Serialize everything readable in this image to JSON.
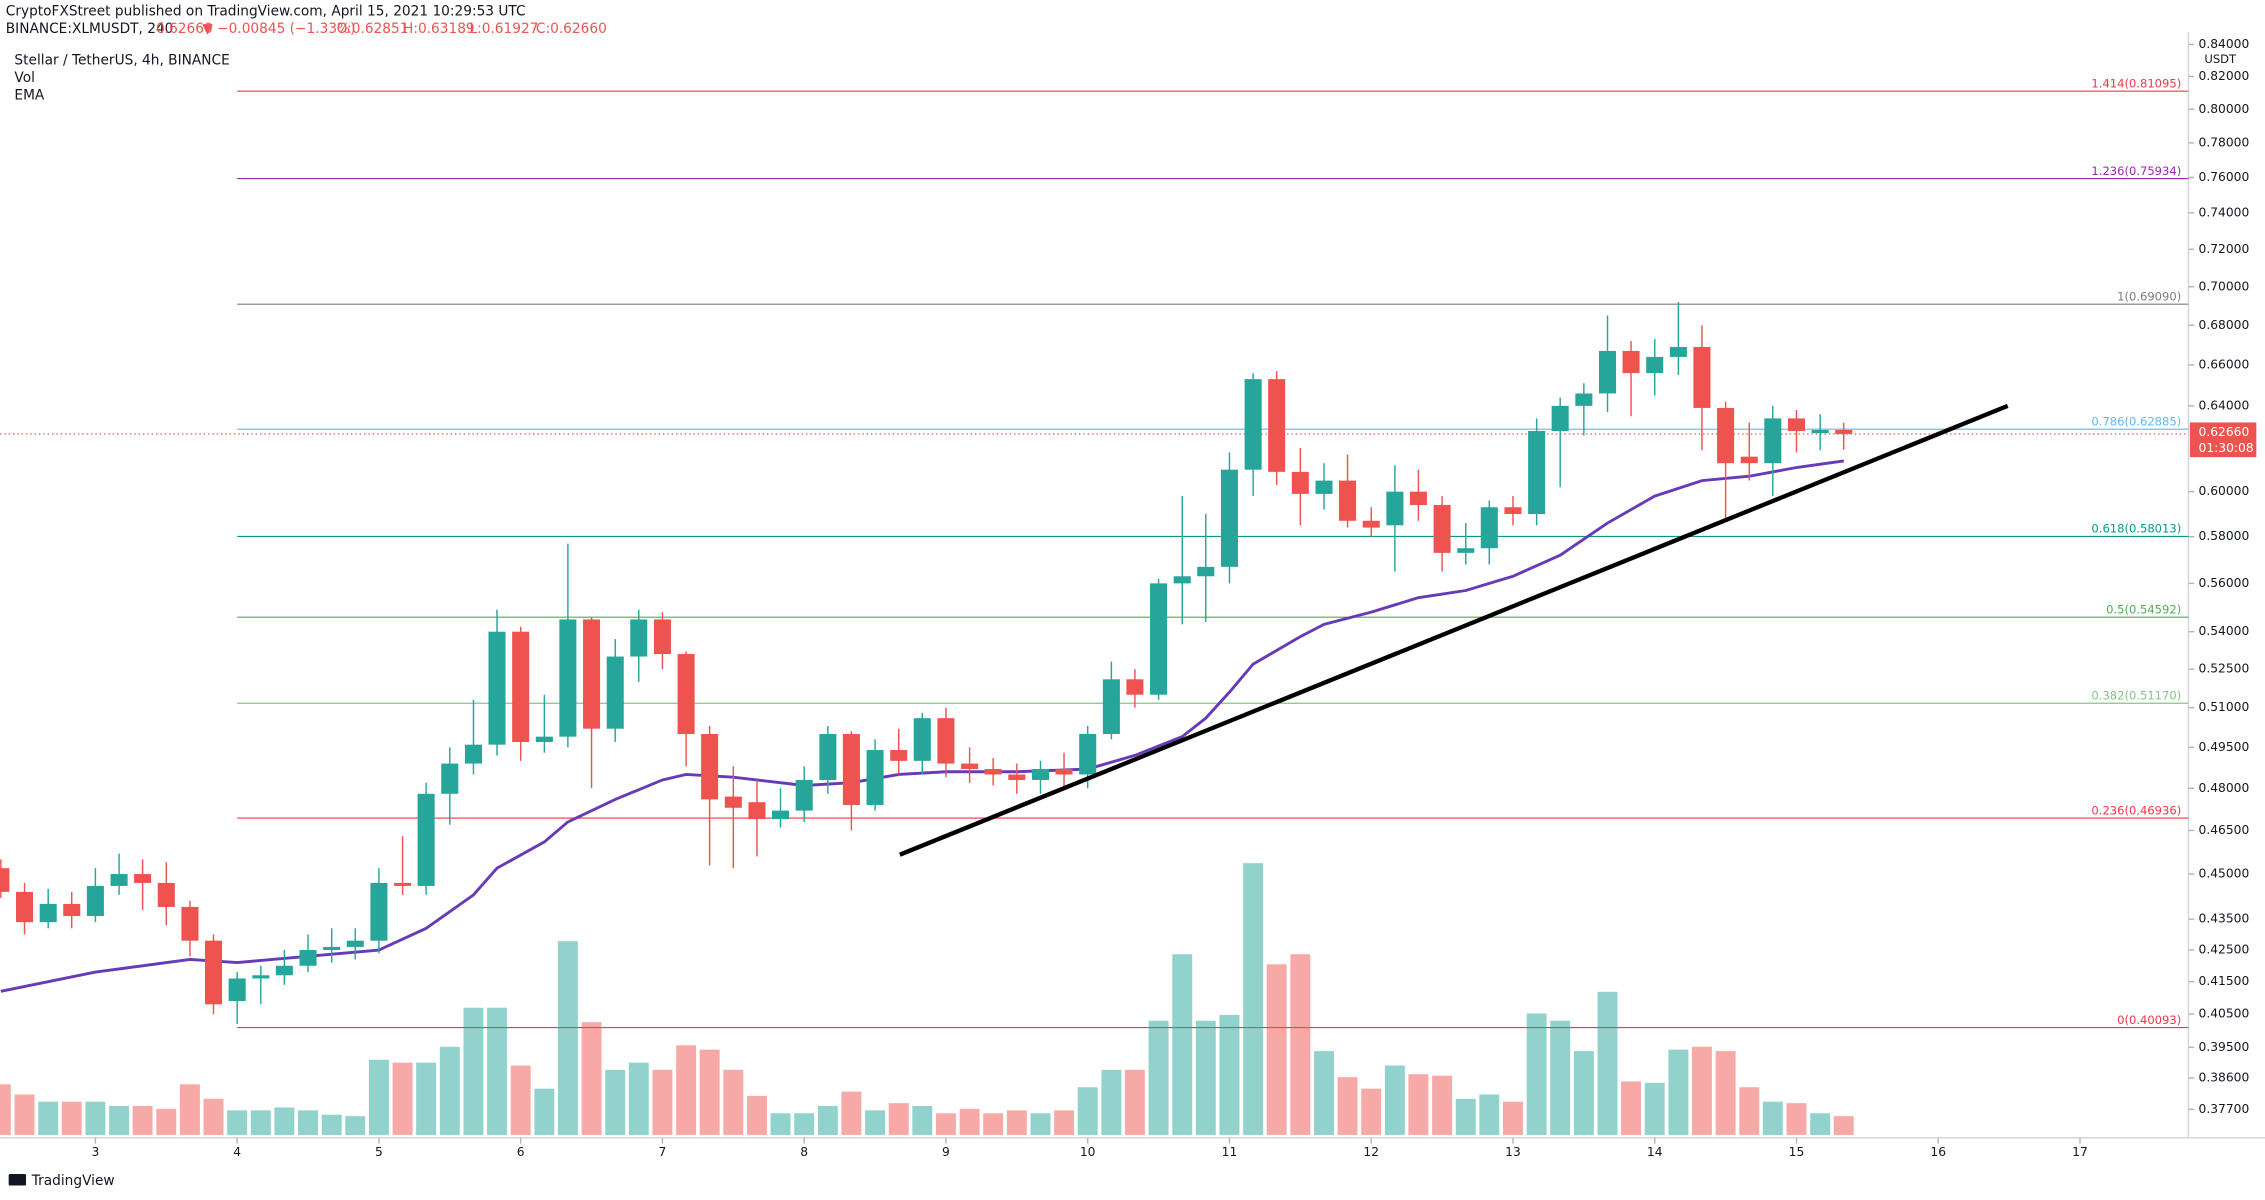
{
  "header": {
    "publisher": "CryptoFXStreet published on TradingView.com, April 15, 2021 10:29:53 UTC",
    "symbol": "BINANCE:XLMUSDT, 240",
    "last": "0.62660",
    "change": "▼ −0.00845 (−1.33%)",
    "ohlc": [
      "O:0.62851",
      "H:0.63189",
      "L:0.61927",
      "C:0.62660"
    ]
  },
  "footer": {
    "brand": "TradingView"
  },
  "chart_data": {
    "type": "candlestick",
    "title": "Stellar / TetherUS, 4h, BINANCE",
    "currency": "USDT",
    "log_scale": true,
    "grid": false,
    "up_color": "#26a69a",
    "down_color": "#ef5350",
    "xlim": [
      2.327,
      17.765
    ],
    "xticks": [
      3,
      4,
      5,
      6,
      7,
      8,
      9,
      10,
      11,
      12,
      13,
      14,
      15,
      16,
      17
    ],
    "ylim": [
      0.369,
      0.848
    ],
    "yticks": [
      {
        "value": 0.84,
        "label": "0.84000"
      },
      {
        "value": 0.82,
        "label": "0.82000"
      },
      {
        "value": 0.8,
        "label": "0.80000"
      },
      {
        "value": 0.78,
        "label": "0.78000"
      },
      {
        "value": 0.76,
        "label": "0.76000"
      },
      {
        "value": 0.74,
        "label": "0.74000"
      },
      {
        "value": 0.72,
        "label": "0.72000"
      },
      {
        "value": 0.7,
        "label": "0.70000"
      },
      {
        "value": 0.68,
        "label": "0.68000"
      },
      {
        "value": 0.66,
        "label": "0.66000"
      },
      {
        "value": 0.64,
        "label": "0.64000"
      },
      {
        "value": 0.6,
        "label": "0.60000"
      },
      {
        "value": 0.58,
        "label": "0.58000"
      },
      {
        "value": 0.56,
        "label": "0.56000"
      },
      {
        "value": 0.54,
        "label": "0.54000"
      },
      {
        "value": 0.525,
        "label": "0.52500"
      },
      {
        "value": 0.51,
        "label": "0.51000"
      },
      {
        "value": 0.495,
        "label": "0.49500"
      },
      {
        "value": 0.48,
        "label": "0.48000"
      },
      {
        "value": 0.465,
        "label": "0.46500"
      },
      {
        "value": 0.45,
        "label": "0.45000"
      },
      {
        "value": 0.435,
        "label": "0.43500"
      },
      {
        "value": 0.425,
        "label": "0.42500"
      },
      {
        "value": 0.415,
        "label": "0.41500"
      },
      {
        "value": 0.405,
        "label": "0.40500"
      },
      {
        "value": 0.395,
        "label": "0.39500"
      },
      {
        "value": 0.386,
        "label": "0.38600"
      },
      {
        "value": 0.377,
        "label": "0.37700"
      }
    ],
    "x": [
      2.333,
      2.5,
      2.667,
      2.833,
      3,
      3.167,
      3.333,
      3.5,
      3.667,
      3.833,
      4,
      4.167,
      4.333,
      4.5,
      4.667,
      4.833,
      5,
      5.167,
      5.333,
      5.5,
      5.667,
      5.833,
      6,
      6.167,
      6.333,
      6.5,
      6.667,
      6.833,
      7,
      7.167,
      7.333,
      7.5,
      7.667,
      7.833,
      8,
      8.167,
      8.333,
      8.5,
      8.667,
      8.833,
      9,
      9.167,
      9.333,
      9.5,
      9.667,
      9.833,
      10,
      10.167,
      10.333,
      10.5,
      10.667,
      10.833,
      11,
      11.167,
      11.333,
      11.5,
      11.667,
      11.833,
      12,
      12.167,
      12.333,
      12.5,
      12.667,
      12.833,
      13,
      13.167,
      13.333,
      13.5,
      13.667,
      13.833,
      14,
      14.167,
      14.333,
      14.5,
      14.667,
      14.833,
      15,
      15.167,
      15.333
    ],
    "open": [
      0.452,
      0.444,
      0.434,
      0.44,
      0.436,
      0.446,
      0.45,
      0.447,
      0.439,
      0.428,
      0.409,
      0.416,
      0.417,
      0.42,
      0.425,
      0.426,
      0.428,
      0.447,
      0.446,
      0.478,
      0.489,
      0.496,
      0.54,
      0.497,
      0.499,
      0.545,
      0.502,
      0.53,
      0.545,
      0.531,
      0.5,
      0.477,
      0.475,
      0.469,
      0.472,
      0.483,
      0.5,
      0.474,
      0.494,
      0.49,
      0.506,
      0.489,
      0.487,
      0.485,
      0.483,
      0.487,
      0.485,
      0.5,
      0.521,
      0.515,
      0.56,
      0.563,
      0.567,
      0.61,
      0.653,
      0.609,
      0.599,
      0.605,
      0.587,
      0.585,
      0.6,
      0.594,
      0.573,
      0.575,
      0.593,
      0.59,
      0.628,
      0.64,
      0.646,
      0.667,
      0.656,
      0.664,
      0.669,
      0.639,
      0.616,
      0.613,
      0.634,
      0.627,
      0.62851
    ],
    "high": [
      0.455,
      0.447,
      0.445,
      0.444,
      0.452,
      0.457,
      0.455,
      0.454,
      0.441,
      0.43,
      0.418,
      0.42,
      0.425,
      0.43,
      0.432,
      0.432,
      0.452,
      0.463,
      0.482,
      0.495,
      0.513,
      0.549,
      0.542,
      0.515,
      0.577,
      0.546,
      0.537,
      0.549,
      0.548,
      0.532,
      0.503,
      0.488,
      0.483,
      0.48,
      0.488,
      0.503,
      0.501,
      0.498,
      0.502,
      0.508,
      0.51,
      0.495,
      0.491,
      0.489,
      0.49,
      0.493,
      0.503,
      0.528,
      0.525,
      0.562,
      0.598,
      0.59,
      0.618,
      0.656,
      0.657,
      0.62,
      0.613,
      0.617,
      0.593,
      0.612,
      0.61,
      0.598,
      0.586,
      0.596,
      0.598,
      0.634,
      0.644,
      0.651,
      0.685,
      0.672,
      0.673,
      0.692,
      0.68,
      0.642,
      0.632,
      0.64,
      0.638,
      0.636,
      0.63189
    ],
    "low": [
      0.442,
      0.43,
      0.432,
      0.432,
      0.434,
      0.443,
      0.438,
      0.433,
      0.423,
      0.405,
      0.402,
      0.408,
      0.414,
      0.418,
      0.421,
      0.422,
      0.424,
      0.443,
      0.443,
      0.467,
      0.485,
      0.492,
      0.49,
      0.493,
      0.495,
      0.48,
      0.497,
      0.52,
      0.525,
      0.488,
      0.453,
      0.452,
      0.456,
      0.466,
      0.468,
      0.478,
      0.465,
      0.472,
      0.485,
      0.485,
      0.484,
      0.482,
      0.481,
      0.478,
      0.478,
      0.48,
      0.48,
      0.498,
      0.51,
      0.513,
      0.543,
      0.544,
      0.56,
      0.598,
      0.603,
      0.585,
      0.592,
      0.584,
      0.58,
      0.565,
      0.587,
      0.565,
      0.568,
      0.568,
      0.585,
      0.585,
      0.602,
      0.626,
      0.637,
      0.635,
      0.645,
      0.655,
      0.619,
      0.588,
      0.605,
      0.598,
      0.618,
      0.619,
      0.61927
    ],
    "close": [
      0.444,
      0.434,
      0.44,
      0.436,
      0.446,
      0.45,
      0.447,
      0.439,
      0.428,
      0.408,
      0.416,
      0.417,
      0.42,
      0.425,
      0.426,
      0.428,
      0.447,
      0.446,
      0.478,
      0.489,
      0.496,
      0.54,
      0.497,
      0.499,
      0.545,
      0.502,
      0.53,
      0.545,
      0.531,
      0.5,
      0.476,
      0.473,
      0.469,
      0.472,
      0.483,
      0.5,
      0.474,
      0.494,
      0.49,
      0.506,
      0.489,
      0.487,
      0.485,
      0.483,
      0.487,
      0.485,
      0.5,
      0.521,
      0.515,
      0.56,
      0.563,
      0.567,
      0.61,
      0.653,
      0.609,
      0.599,
      0.605,
      0.587,
      0.584,
      0.6,
      0.594,
      0.573,
      0.575,
      0.593,
      0.59,
      0.628,
      0.64,
      0.646,
      0.667,
      0.656,
      0.664,
      0.669,
      0.639,
      0.613,
      0.613,
      0.634,
      0.628,
      0.6285,
      0.6266
    ],
    "volume_name": "Vol",
    "volume_lim": [
      0,
      200
    ],
    "volume": [
      35,
      28,
      23,
      23,
      23,
      20,
      20,
      18,
      35,
      25,
      17,
      17,
      19,
      17,
      14,
      13,
      52,
      50,
      50,
      61,
      88,
      88,
      48,
      32,
      134,
      78,
      45,
      50,
      45,
      62,
      59,
      45,
      27,
      15,
      15,
      20,
      30,
      17,
      22,
      20,
      15,
      18,
      15,
      17,
      15,
      17,
      33,
      45,
      45,
      79,
      125,
      79,
      83,
      188,
      118,
      125,
      58,
      40,
      32,
      48,
      42,
      41,
      25,
      28,
      23,
      84,
      79,
      58,
      99,
      37,
      36,
      59,
      61,
      58,
      33,
      23,
      22,
      15,
      13
    ],
    "ema": {
      "name": "EMA",
      "color": "#673ab7",
      "x": [
        2.333,
        3,
        3.667,
        4,
        4.5,
        5,
        5.333,
        5.667,
        5.833,
        6.167,
        6.333,
        6.667,
        7,
        7.167,
        7.5,
        8,
        8.333,
        8.667,
        9,
        9.5,
        10,
        10.333,
        10.667,
        10.833,
        11,
        11.167,
        11.5,
        11.667,
        12,
        12.333,
        12.667,
        13,
        13.333,
        13.667,
        14,
        14.333,
        14.667,
        15,
        15.333
      ],
      "values": [
        0.412,
        0.418,
        0.422,
        0.421,
        0.423,
        0.425,
        0.432,
        0.443,
        0.452,
        0.461,
        0.468,
        0.476,
        0.483,
        0.485,
        0.484,
        0.481,
        0.482,
        0.485,
        0.486,
        0.486,
        0.487,
        0.492,
        0.499,
        0.506,
        0.516,
        0.527,
        0.538,
        0.543,
        0.548,
        0.554,
        0.557,
        0.563,
        0.572,
        0.586,
        0.598,
        0.605,
        0.607,
        0.611,
        0.614
      ]
    },
    "trendline": {
      "color": "#000000",
      "x": [
        8.675,
        16.49
      ],
      "y": [
        0.4566,
        0.64
      ]
    },
    "fib_x": 4,
    "fib_levels": [
      {
        "label": "1.414(0.81095)",
        "value": 0.81095,
        "color": "#f23645"
      },
      {
        "label": "1.236(0.75934)",
        "value": 0.75934,
        "color": "#9c27b0"
      },
      {
        "label": "1(0.69090)",
        "value": 0.6909,
        "color": "#787b86"
      },
      {
        "label": "0.786(0.62885)",
        "value": 0.62885,
        "color": "#64b5f6"
      },
      {
        "label": "0.618(0.58013)",
        "value": 0.58013,
        "color": "#089981"
      },
      {
        "label": "0.5(0.54592)",
        "value": 0.54592,
        "color": "#4caf50"
      },
      {
        "label": "0.382(0.51170)",
        "value": 0.5117,
        "color": "#81c784"
      },
      {
        "label": "0.236(0.46936)",
        "value": 0.46936,
        "color": "#f23645"
      },
      {
        "label": "0(0.40093)",
        "value": 0.40093,
        "color": "#f23645"
      }
    ],
    "last_price": {
      "value": 0.6266,
      "label": "0.62660"
    },
    "countdown": "01:30:08"
  }
}
